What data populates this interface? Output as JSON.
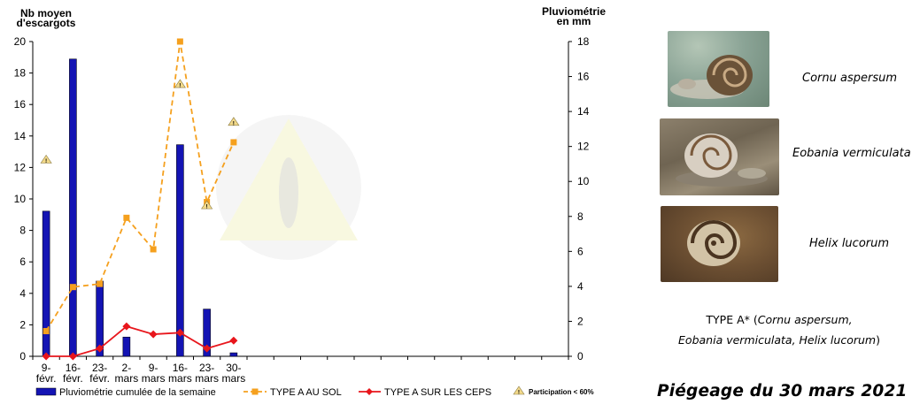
{
  "colors": {
    "bars": "#1414b4",
    "sol": "#f5a01e",
    "ceps": "#e8161c",
    "watermark": "#f4f4c8"
  },
  "chart_data": {
    "type": "bar+line",
    "left_axis_title": [
      "Nb moyen",
      "d'escargots"
    ],
    "right_axis_title": [
      "Pluviométrie",
      "en mm"
    ],
    "ylim_left": [
      0,
      20
    ],
    "ylim_right": [
      0,
      18
    ],
    "left_ticks": [
      0,
      2,
      4,
      6,
      8,
      10,
      12,
      14,
      16,
      18,
      20
    ],
    "right_ticks": [
      0,
      2,
      4,
      6,
      8,
      10,
      12,
      14,
      16,
      18
    ],
    "categories": [
      [
        "9-",
        "févr."
      ],
      [
        "16-",
        "févr."
      ],
      [
        "23-",
        "févr."
      ],
      [
        "2-",
        "mars"
      ],
      [
        "9-",
        "mars"
      ],
      [
        "16-",
        "mars"
      ],
      [
        "23-",
        "mars"
      ],
      [
        "30-",
        "mars"
      ]
    ],
    "slot_count": 20,
    "series": [
      {
        "name": "Pluviométrie cumulée de la semaine",
        "kind": "bar",
        "axis": "right",
        "values": [
          8.3,
          17.0,
          4.3,
          1.1,
          null,
          12.1,
          2.7,
          0.2
        ]
      },
      {
        "name": "TYPE A AU SOL",
        "kind": "line",
        "axis": "left",
        "values": [
          1.6,
          4.4,
          4.6,
          8.8,
          6.8,
          20.0,
          9.8,
          13.6
        ]
      },
      {
        "name": "TYPE A SUR LES CEPS",
        "kind": "line",
        "axis": "left",
        "values": [
          0.0,
          0.0,
          0.5,
          1.9,
          1.4,
          1.5,
          0.5,
          1.0
        ]
      }
    ],
    "participation_flags": [
      {
        "category_index": 0,
        "y": 12.5
      },
      {
        "category_index": 5,
        "y": 17.3
      },
      {
        "category_index": 6,
        "y": 9.6
      },
      {
        "category_index": 7,
        "y": 14.9
      }
    ],
    "legend": [
      {
        "label": "Pluviométrie cumulée de la semaine",
        "symbol": "bar"
      },
      {
        "label": "TYPE A AU SOL",
        "symbol": "square-dash"
      },
      {
        "label": "TYPE A SUR LES CEPS",
        "symbol": "diamond"
      },
      {
        "label": "Participation < 60%",
        "symbol": "warning-triangle"
      }
    ]
  },
  "species": [
    {
      "name": "Cornu aspersum",
      "photo": "snail-photo-cornu"
    },
    {
      "name": "Eobania vermiculata",
      "photo": "snail-photo-eobania"
    },
    {
      "name": "Helix lucorum",
      "photo": "snail-photo-helix"
    }
  ],
  "note": {
    "line1_prefix": "TYPE A* (",
    "line1_species1": "Cornu aspersum,",
    "line2_species2": "Eobania vermiculata, ",
    "line2_species3": "Helix lucorum",
    "line2_suffix": ")"
  },
  "heading": "Piégeage du 30 mars 2021"
}
